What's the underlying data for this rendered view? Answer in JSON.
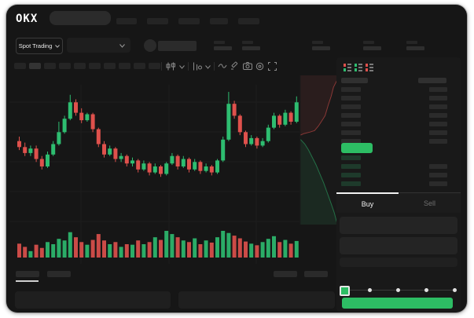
{
  "brand": {
    "logo_text": "OKX"
  },
  "header": {
    "search_placeholder": "",
    "nav_placeholder_widths": [
      26,
      27,
      27,
      23,
      27
    ]
  },
  "subheader": {
    "market_type_label": "Spot Trading",
    "stat_group_x": [
      264,
      300,
      389,
      454,
      509
    ]
  },
  "chart_toolbar": {
    "timeframe_pill_count": 10,
    "active_pill_index": 1
  },
  "orderbook": {
    "view_modes": [
      "combined",
      "bids-only",
      "asks-only"
    ],
    "sell_row_count": 7,
    "buy_row_count": 4,
    "buy_rows_with_amount": [
      1,
      2,
      3
    ]
  },
  "trade_panel": {
    "tabs": {
      "buy_label": "Buy",
      "sell_label": "Sell",
      "active": "buy"
    },
    "input_count": 2,
    "slider": {
      "stop_count": 5,
      "active_stop": 0,
      "dot_x": [
        40,
        76,
        112,
        148
      ]
    }
  },
  "colors": {
    "up": "#2EBD70",
    "down": "#DF514C",
    "accent_green": "#2DBD64",
    "panel_bg": "#191919",
    "window_bg": "#161616"
  },
  "chart_data": {
    "type": "candlestick",
    "title": "",
    "note": "no axis or price labels are visible in the pixels; OHLC normalized to 0-100",
    "candles": [
      [
        57,
        60,
        51,
        53
      ],
      [
        53,
        56,
        47,
        49
      ],
      [
        49,
        54,
        47,
        52
      ],
      [
        52,
        54,
        43,
        45
      ],
      [
        45,
        47,
        38,
        40
      ],
      [
        40,
        50,
        39,
        48
      ],
      [
        48,
        57,
        47,
        55
      ],
      [
        55,
        70,
        54,
        63
      ],
      [
        63,
        74,
        62,
        72
      ],
      [
        72,
        88,
        71,
        83
      ],
      [
        83,
        85,
        74,
        76
      ],
      [
        76,
        79,
        69,
        71
      ],
      [
        71,
        76,
        70,
        75
      ],
      [
        75,
        76,
        63,
        65
      ],
      [
        65,
        66,
        53,
        55
      ],
      [
        55,
        57,
        46,
        48
      ],
      [
        48,
        54,
        47,
        52
      ],
      [
        52,
        53,
        43,
        45
      ],
      [
        45,
        49,
        43,
        47
      ],
      [
        47,
        48,
        40,
        42
      ],
      [
        42,
        46,
        40,
        44
      ],
      [
        44,
        45,
        36,
        38
      ],
      [
        38,
        44,
        37,
        42
      ],
      [
        42,
        43,
        34,
        36
      ],
      [
        36,
        42,
        35,
        40
      ],
      [
        40,
        41,
        33,
        35
      ],
      [
        35,
        43,
        34,
        42
      ],
      [
        42,
        49,
        41,
        47
      ],
      [
        47,
        48,
        38,
        40
      ],
      [
        40,
        47,
        39,
        45
      ],
      [
        45,
        46,
        36,
        38
      ],
      [
        38,
        45,
        37,
        43
      ],
      [
        43,
        44,
        35,
        37
      ],
      [
        37,
        42,
        36,
        40
      ],
      [
        40,
        41,
        34,
        36
      ],
      [
        36,
        45,
        35,
        44
      ],
      [
        44,
        60,
        43,
        58
      ],
      [
        58,
        90,
        57,
        82
      ],
      [
        82,
        84,
        72,
        74
      ],
      [
        74,
        75,
        61,
        63
      ],
      [
        63,
        64,
        53,
        55
      ],
      [
        55,
        61,
        54,
        59
      ],
      [
        59,
        60,
        52,
        54
      ],
      [
        54,
        59,
        53,
        57
      ],
      [
        57,
        68,
        56,
        66
      ],
      [
        66,
        76,
        65,
        74
      ],
      [
        74,
        75,
        66,
        68
      ],
      [
        68,
        78,
        67,
        76
      ],
      [
        76,
        77,
        68,
        70
      ],
      [
        70,
        87,
        69,
        83
      ]
    ],
    "volumes": [
      52,
      40,
      24,
      48,
      36,
      58,
      50,
      70,
      64,
      95,
      76,
      58,
      48,
      66,
      88,
      64,
      50,
      58,
      40,
      50,
      48,
      64,
      50,
      58,
      76,
      66,
      100,
      88,
      76,
      64,
      58,
      72,
      50,
      64,
      56,
      76,
      100,
      92,
      82,
      72,
      60,
      52,
      46,
      58,
      70,
      80,
      58,
      66,
      52,
      62
    ],
    "grid": {
      "h": [
        42,
        80,
        118,
        156,
        194
      ],
      "v": [
        91,
        203,
        314
      ]
    }
  },
  "depth_chart": {
    "asks": [
      [
        1,
        0.03
      ],
      [
        0.9,
        0.08
      ],
      [
        0.84,
        0.14
      ],
      [
        0.76,
        0.2
      ],
      [
        0.68,
        0.27
      ],
      [
        0.58,
        0.31
      ],
      [
        0.5,
        0.34
      ],
      [
        0.4,
        0.37
      ],
      [
        0.28,
        0.38
      ],
      [
        0.12,
        0.39
      ],
      [
        0.03,
        0.4
      ]
    ],
    "bids": [
      [
        0.03,
        0.43
      ],
      [
        0.14,
        0.46
      ],
      [
        0.24,
        0.5
      ],
      [
        0.34,
        0.55
      ],
      [
        0.44,
        0.6
      ],
      [
        0.54,
        0.66
      ],
      [
        0.64,
        0.72
      ],
      [
        0.74,
        0.79
      ],
      [
        0.84,
        0.86
      ],
      [
        0.92,
        0.92
      ],
      [
        0.99,
        0.985
      ]
    ]
  }
}
